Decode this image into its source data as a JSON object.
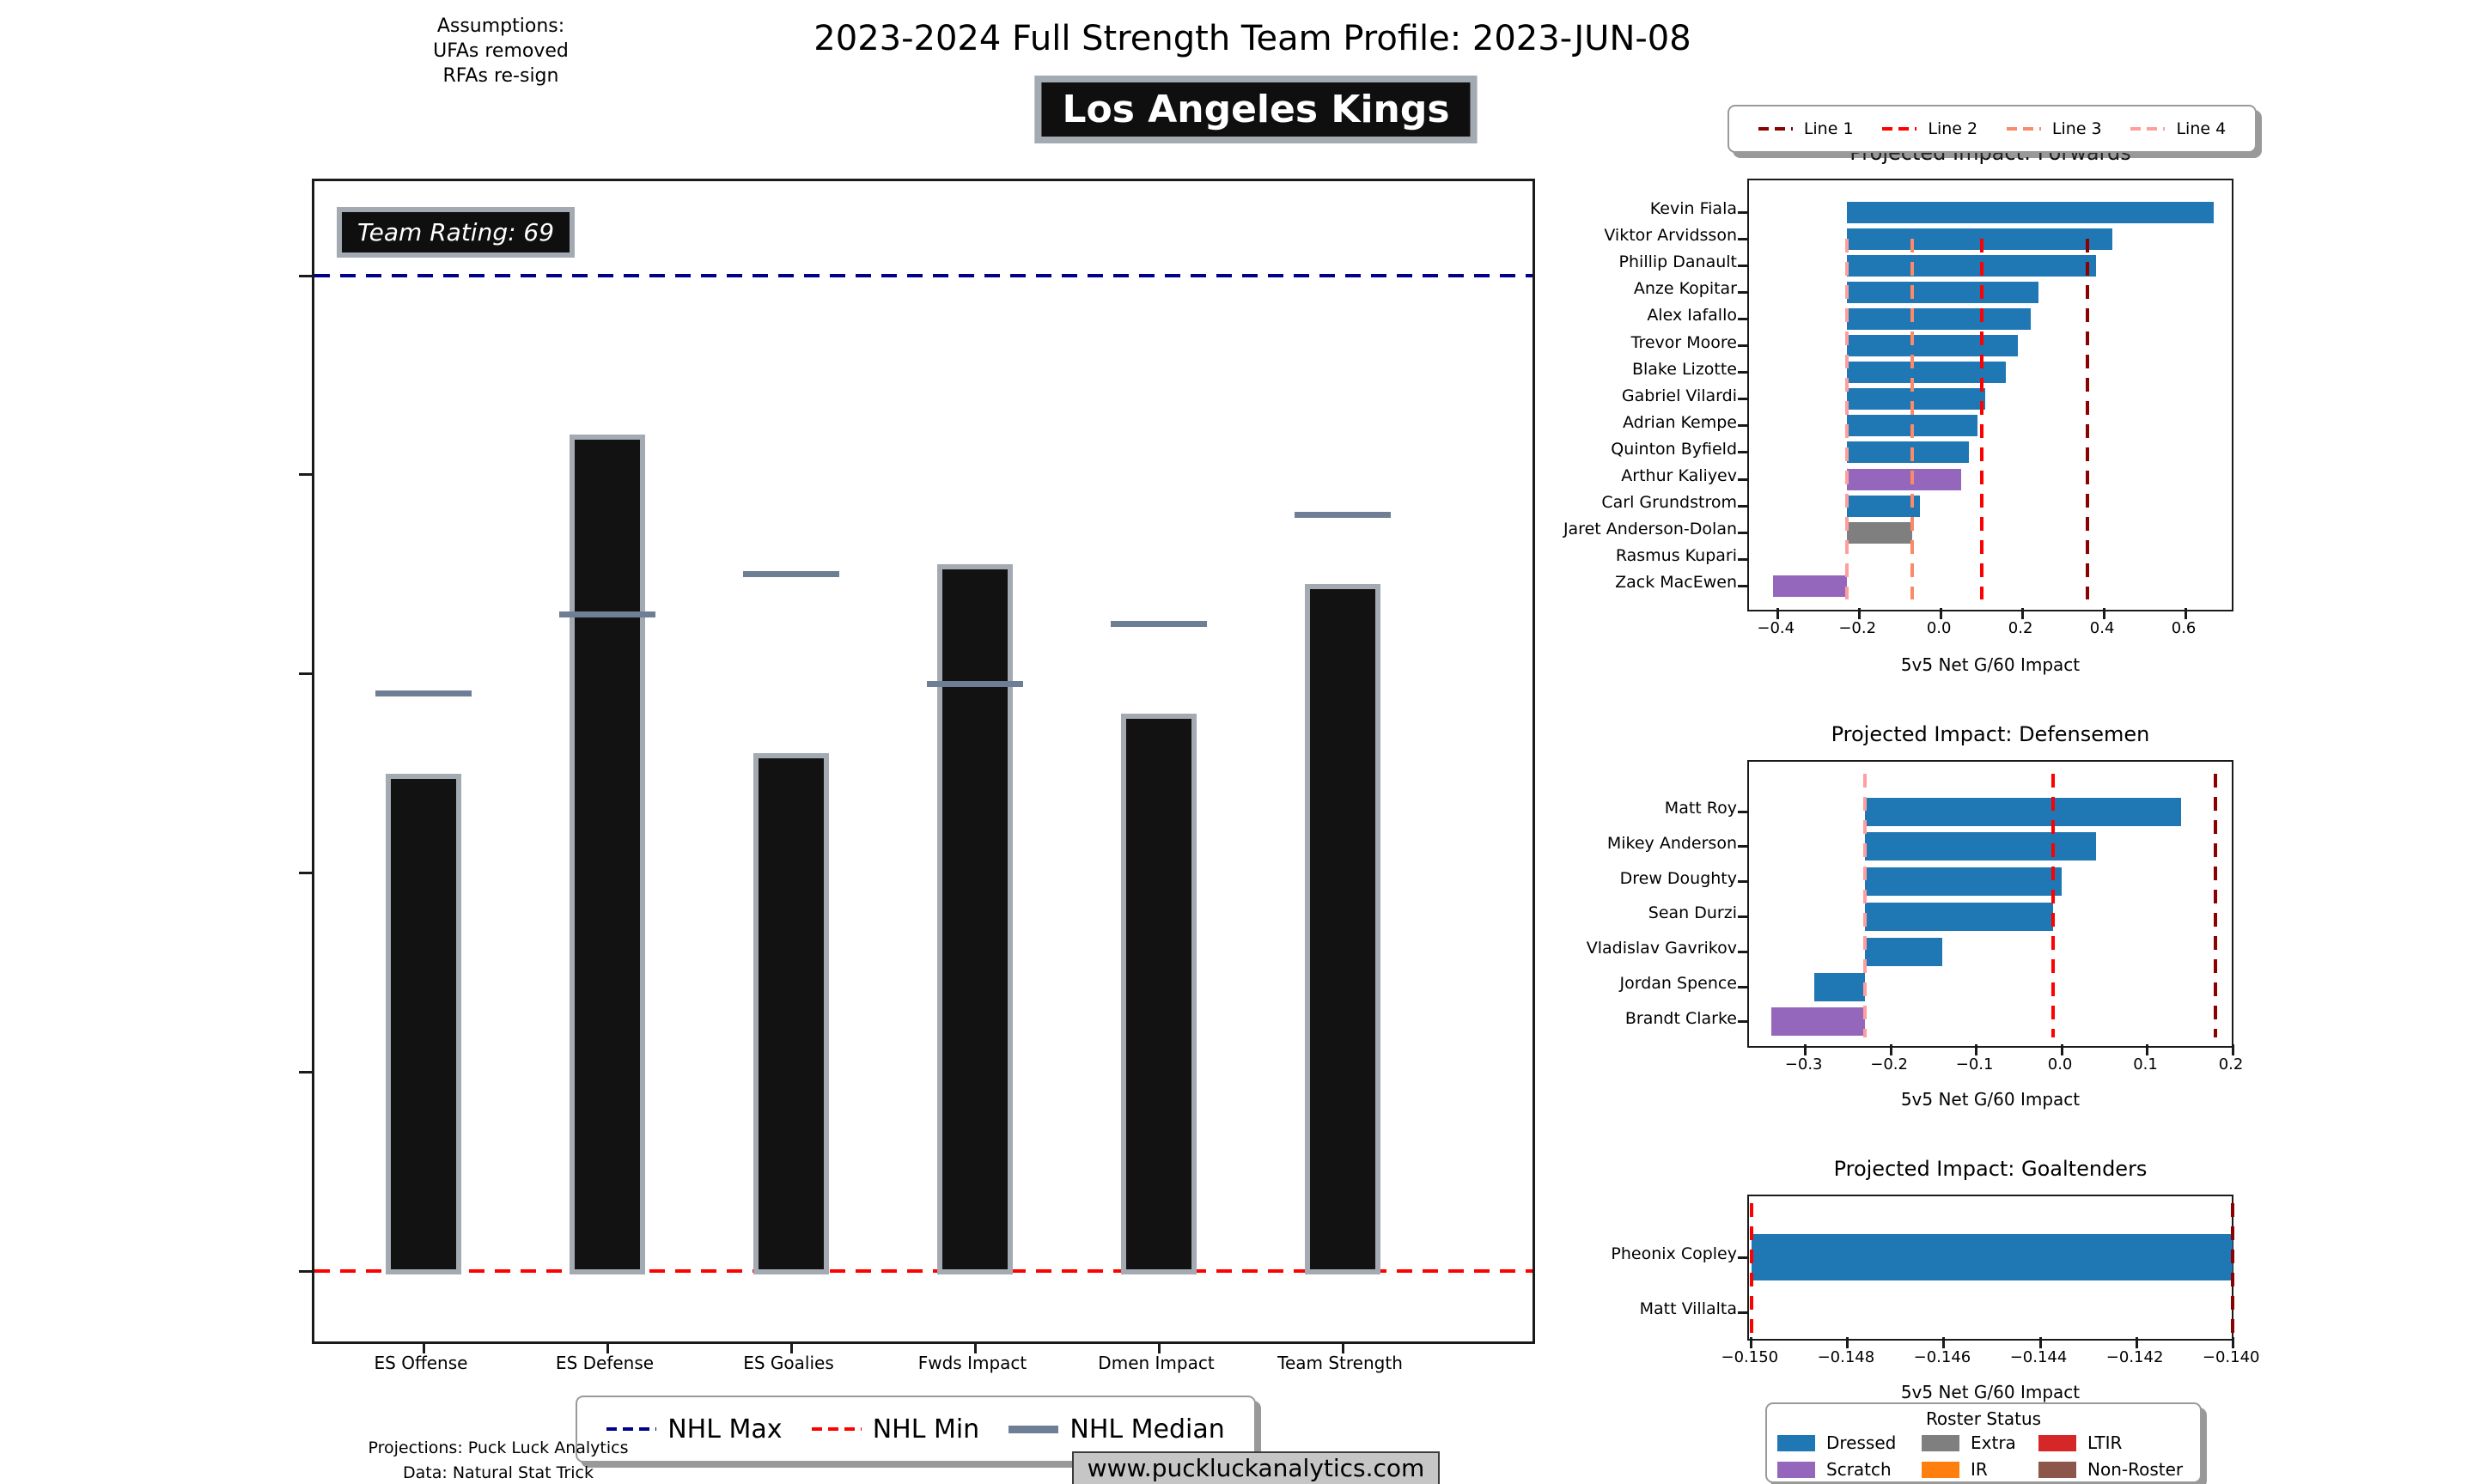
{
  "header": {
    "assumptions": [
      "Assumptions:",
      "UFAs removed",
      "RFAs re-sign"
    ],
    "title": "2023-2024 Full Strength Team Profile: 2023-JUN-08",
    "team_name": "Los Angeles Kings"
  },
  "colors": {
    "dressed": "#1f77b4",
    "scratch": "#9467bd",
    "extra": "#7f7f7f",
    "ir": "#ff7f0e",
    "ltir": "#d62728",
    "non_roster": "#8c564b",
    "line1": "#8b0000",
    "line2": "#ff0000",
    "line3": "#fa8a68",
    "line4": "#ff9e9e",
    "nhl_max": "#00008b",
    "nhl_min": "#ff0000",
    "nhl_median": "#6e7f95",
    "bar_fill": "#121212",
    "bar_edge": "#a3aab1"
  },
  "chart_data": [
    {
      "type": "bar",
      "title": "",
      "team_rating_label": "Team Rating: 69",
      "categories": [
        "ES Offense",
        "ES Defense",
        "ES Goalies",
        "Fwds Impact",
        "Dmen Impact",
        "Team Strength"
      ],
      "values": [
        50,
        84,
        52,
        71,
        56,
        69
      ],
      "medians": [
        58,
        66,
        70,
        59,
        65,
        76
      ],
      "ylim": [
        0,
        100
      ],
      "nhl_max": 100,
      "nhl_min": 0,
      "grid": false,
      "legend_position": "below"
    },
    {
      "type": "bar",
      "orientation": "horizontal",
      "title": "Projected Impact: Forwards",
      "xlabel": "5v5 Net G/60 Impact",
      "xlim": [
        -0.47,
        0.722
      ],
      "xticks": [
        -0.4,
        -0.2,
        0.0,
        0.2,
        0.4,
        0.6
      ],
      "xtick_labels": [
        "−0.4",
        "−0.2",
        "0.0",
        "0.2",
        "0.4",
        "0.6"
      ],
      "baseline": -0.23,
      "players": [
        {
          "name": "Kevin Fiala",
          "value": 0.67,
          "status": "dressed"
        },
        {
          "name": "Viktor Arvidsson",
          "value": 0.42,
          "status": "dressed"
        },
        {
          "name": "Phillip Danault",
          "value": 0.38,
          "status": "dressed"
        },
        {
          "name": "Anze Kopitar",
          "value": 0.24,
          "status": "dressed"
        },
        {
          "name": "Alex Iafallo",
          "value": 0.22,
          "status": "dressed"
        },
        {
          "name": "Trevor Moore",
          "value": 0.19,
          "status": "dressed"
        },
        {
          "name": "Blake Lizotte",
          "value": 0.16,
          "status": "dressed"
        },
        {
          "name": "Gabriel Vilardi",
          "value": 0.11,
          "status": "dressed"
        },
        {
          "name": "Adrian Kempe",
          "value": 0.09,
          "status": "dressed"
        },
        {
          "name": "Quinton Byfield",
          "value": 0.07,
          "status": "dressed"
        },
        {
          "name": "Arthur Kaliyev",
          "value": 0.05,
          "status": "scratch"
        },
        {
          "name": "Carl Grundstrom",
          "value": -0.05,
          "status": "dressed"
        },
        {
          "name": "Jaret Anderson-Dolan",
          "value": -0.07,
          "status": "extra"
        },
        {
          "name": "Rasmus Kupari",
          "value": -0.23,
          "status": "dressed"
        },
        {
          "name": "Zack MacEwen",
          "value": -0.41,
          "status": "scratch"
        }
      ],
      "ref_lines": [
        {
          "legend_label": "Line 1",
          "value": 0.36,
          "color_key": "line1"
        },
        {
          "legend_label": "Line 2",
          "value": 0.1,
          "color_key": "line2"
        },
        {
          "legend_label": "Line 3",
          "value": -0.07,
          "color_key": "line3"
        },
        {
          "legend_label": "Line 4",
          "value": -0.23,
          "color_key": "line4"
        }
      ]
    },
    {
      "type": "bar",
      "orientation": "horizontal",
      "title": "Projected Impact: Defensemen",
      "xlabel": "5v5 Net G/60 Impact",
      "xlim": [
        -0.366,
        0.203
      ],
      "xticks": [
        -0.3,
        -0.2,
        -0.1,
        0.0,
        0.1,
        0.2
      ],
      "xtick_labels": [
        "−0.3",
        "−0.2",
        "−0.1",
        "0.0",
        "0.1",
        "0.2"
      ],
      "baseline": -0.23,
      "players": [
        {
          "name": "Matt Roy",
          "value": 0.14,
          "status": "dressed"
        },
        {
          "name": "Mikey Anderson",
          "value": 0.04,
          "status": "dressed"
        },
        {
          "name": "Drew Doughty",
          "value": 0.0,
          "status": "dressed"
        },
        {
          "name": "Sean Durzi",
          "value": -0.01,
          "status": "dressed"
        },
        {
          "name": "Vladislav Gavrikov",
          "value": -0.14,
          "status": "dressed"
        },
        {
          "name": "Jordan Spence",
          "value": -0.29,
          "status": "dressed"
        },
        {
          "name": "Brandt Clarke",
          "value": -0.34,
          "status": "scratch"
        }
      ],
      "ref_lines": [
        {
          "legend_label": "Line 1",
          "value": 0.18,
          "color_key": "line1"
        },
        {
          "legend_label": "Line 2",
          "value": -0.01,
          "color_key": "line2"
        },
        {
          "legend_label": "Line 4",
          "value": -0.23,
          "color_key": "line4"
        }
      ]
    },
    {
      "type": "bar",
      "orientation": "horizontal",
      "title": "Projected Impact: Goaltenders",
      "xlabel": "5v5 Net G/60 Impact",
      "xlim": [
        -0.15005,
        -0.13995
      ],
      "xticks": [
        -0.15,
        -0.148,
        -0.146,
        -0.144,
        -0.142,
        -0.14
      ],
      "xtick_labels": [
        "−0.150",
        "−0.148",
        "−0.146",
        "−0.144",
        "−0.142",
        "−0.140"
      ],
      "baseline": -0.15,
      "players": [
        {
          "name": "Pheonix Copley",
          "value": -0.14,
          "status": "dressed"
        },
        {
          "name": "Matt Villalta",
          "value": -0.15,
          "status": "dressed"
        }
      ],
      "ref_lines": [
        {
          "legend_label": "Line 1",
          "value": -0.14,
          "color_key": "line1"
        },
        {
          "legend_label": "Line 2",
          "value": -0.15,
          "color_key": "line2"
        }
      ]
    }
  ],
  "line_legend": {
    "items": [
      {
        "label": "Line 1",
        "color_key": "line1"
      },
      {
        "label": "Line 2",
        "color_key": "line2"
      },
      {
        "label": "Line 3",
        "color_key": "line3"
      },
      {
        "label": "Line 4",
        "color_key": "line4"
      }
    ]
  },
  "main_legend": {
    "items": [
      {
        "label": "NHL Max",
        "color_key": "nhl_max",
        "style": "dashed"
      },
      {
        "label": "NHL Min",
        "color_key": "nhl_min",
        "style": "dashed"
      },
      {
        "label": "NHL Median",
        "color_key": "nhl_median",
        "style": "solid"
      }
    ]
  },
  "roster_legend": {
    "title": "Roster Status",
    "items": [
      {
        "label": "Dressed",
        "color_key": "dressed"
      },
      {
        "label": "Extra",
        "color_key": "extra"
      },
      {
        "label": "LTIR",
        "color_key": "ltir"
      },
      {
        "label": "Scratch",
        "color_key": "scratch"
      },
      {
        "label": "IR",
        "color_key": "ir"
      },
      {
        "label": "Non-Roster",
        "color_key": "non_roster"
      }
    ]
  },
  "footer": {
    "line1": "Projections: Puck Luck Analytics",
    "line2": "Data: Natural Stat Trick",
    "website": "www.puckluckanalytics.com"
  }
}
